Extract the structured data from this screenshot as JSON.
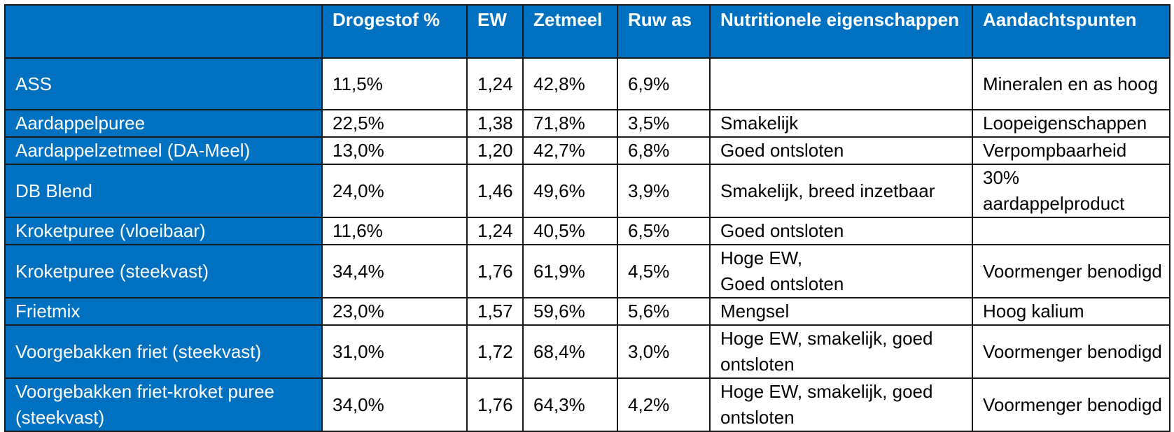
{
  "table": {
    "headers": [
      "",
      "Drogestof %",
      "EW",
      "Zetmeel",
      "Ruw as",
      "Nutritionele eigenschappen",
      "Aandachtspunten"
    ],
    "rows": [
      [
        "ASS",
        "11,5%",
        "1,24",
        "42,8%",
        "6,9%",
        "",
        "Mineralen en as hoog"
      ],
      [
        "Aardappelpuree",
        "22,5%",
        "1,38",
        "71,8%",
        "3,5%",
        "Smakelijk",
        "Loopeigenschappen"
      ],
      [
        "Aardappelzetmeel (DA-Meel)",
        "13,0%",
        "1,20",
        "42,7%",
        "6,8%",
        "Goed ontsloten",
        "Verpompbaarheid"
      ],
      [
        "DB Blend",
        "24,0%",
        "1,46",
        "49,6%",
        "3,9%",
        "Smakelijk, breed inzetbaar",
        "30% aardappelproduct"
      ],
      [
        "Kroketpuree (vloeibaar)",
        "11,6%",
        "1,24",
        "40,5%",
        "6,5%",
        "Goed ontsloten",
        ""
      ],
      [
        "Kroketpuree (steekvast)",
        "34,4%",
        "1,76",
        "61,9%",
        "4,5%",
        "Hoge EW,\nGoed ontsloten",
        "Voormenger benodigd"
      ],
      [
        "Frietmix",
        "23,0%",
        "1,57",
        "59,6%",
        "5,6%",
        "Mengsel",
        "Hoog kalium"
      ],
      [
        "Voorgebakken friet (steekvast)",
        "31,0%",
        "1,72",
        "68,4%",
        "3,0%",
        "Hoge EW, smakelijk, goed ontsloten",
        "Voormenger benodigd"
      ],
      [
        "Voorgebakken friet-kroket puree (steekvast)",
        "34,0%",
        "1,76",
        "64,3%",
        "4,2%",
        "Hoge EW, smakelijk, goed ontsloten",
        "Voormenger benodigd"
      ]
    ]
  },
  "colors": {
    "header_bg": "#0070c0",
    "header_text": "#ffffff",
    "border": "#1a1a1a"
  }
}
